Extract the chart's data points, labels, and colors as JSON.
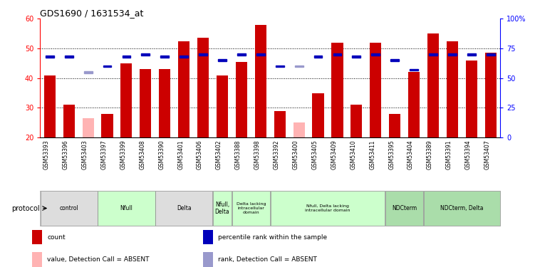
{
  "title": "GDS1690 / 1631534_at",
  "samples": [
    "GSM53393",
    "GSM53396",
    "GSM53403",
    "GSM53397",
    "GSM53399",
    "GSM53408",
    "GSM53390",
    "GSM53401",
    "GSM53406",
    "GSM53402",
    "GSM53388",
    "GSM53398",
    "GSM53392",
    "GSM53400",
    "GSM53405",
    "GSM53409",
    "GSM53410",
    "GSM53411",
    "GSM53395",
    "GSM53404",
    "GSM53389",
    "GSM53391",
    "GSM53394",
    "GSM53407"
  ],
  "count_values": [
    41,
    31,
    26.5,
    28,
    45,
    43,
    43,
    52.5,
    53.5,
    41,
    45.5,
    58,
    29,
    25,
    35,
    52,
    31,
    52,
    28,
    42,
    55,
    52.5,
    46,
    48.5
  ],
  "count_absent": [
    false,
    false,
    true,
    false,
    false,
    false,
    false,
    false,
    false,
    false,
    false,
    false,
    false,
    true,
    false,
    false,
    false,
    false,
    false,
    false,
    false,
    false,
    false,
    false
  ],
  "rank_values_pct": [
    68,
    68,
    55,
    60,
    68,
    70,
    68,
    68,
    70,
    65,
    70,
    70,
    60,
    60,
    68,
    70,
    68,
    70,
    65,
    57,
    70,
    70,
    70,
    70
  ],
  "rank_absent": [
    false,
    false,
    true,
    false,
    false,
    false,
    false,
    false,
    false,
    false,
    false,
    false,
    false,
    true,
    false,
    false,
    false,
    false,
    false,
    false,
    false,
    false,
    false,
    false
  ],
  "ylim_left": [
    20,
    60
  ],
  "ylim_right": [
    0,
    100
  ],
  "yticks_left": [
    20,
    30,
    40,
    50,
    60
  ],
  "yticks_right": [
    0,
    25,
    50,
    75,
    100
  ],
  "ytick_labels_right": [
    "0",
    "25",
    "50",
    "75",
    "100%"
  ],
  "bar_color_normal": "#cc0000",
  "bar_color_absent": "#ffb3b3",
  "rank_color_normal": "#0000bb",
  "rank_color_absent": "#9999cc",
  "protocol_groups": [
    {
      "label": "control",
      "start": 0,
      "end": 2,
      "color": "#dddddd"
    },
    {
      "label": "Nfull",
      "start": 3,
      "end": 5,
      "color": "#ccffcc"
    },
    {
      "label": "Delta",
      "start": 6,
      "end": 8,
      "color": "#dddddd"
    },
    {
      "label": "Nfull,\nDelta",
      "start": 9,
      "end": 9,
      "color": "#ccffcc"
    },
    {
      "label": "Delta lacking\nintracellular\ndomain",
      "start": 10,
      "end": 11,
      "color": "#ccffcc"
    },
    {
      "label": "Nfull, Delta lacking\nintracellular domain",
      "start": 12,
      "end": 17,
      "color": "#ccffcc"
    },
    {
      "label": "NDCterm",
      "start": 18,
      "end": 19,
      "color": "#aaddaa"
    },
    {
      "label": "NDCterm, Delta",
      "start": 20,
      "end": 23,
      "color": "#aaddaa"
    }
  ],
  "legend_items": [
    {
      "label": "count",
      "color": "#cc0000"
    },
    {
      "label": "percentile rank within the sample",
      "color": "#0000bb"
    },
    {
      "label": "value, Detection Call = ABSENT",
      "color": "#ffb3b3"
    },
    {
      "label": "rank, Detection Call = ABSENT",
      "color": "#9999cc"
    }
  ]
}
